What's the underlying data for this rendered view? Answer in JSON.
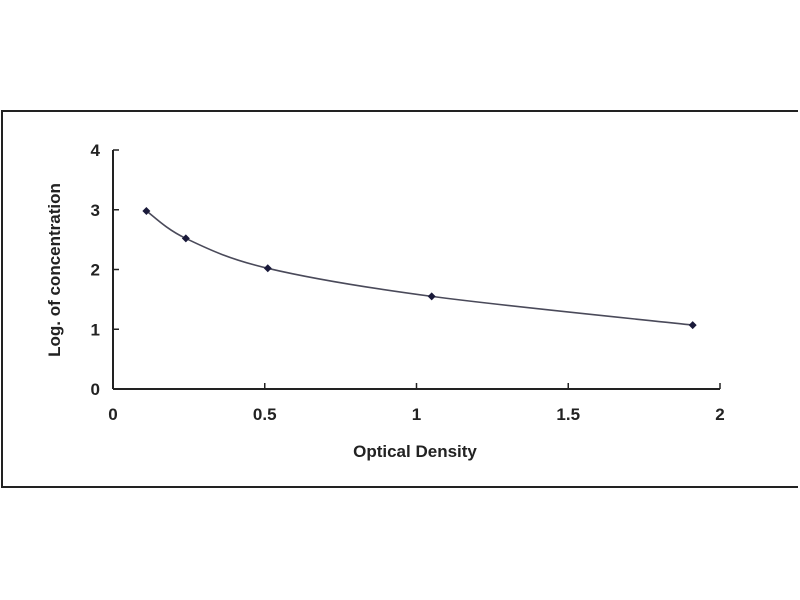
{
  "chart_data": {
    "type": "line",
    "title": "",
    "xlabel": "Optical Density",
    "ylabel": "Log. of concentration",
    "xlim": [
      0,
      2
    ],
    "ylim": [
      0,
      4
    ],
    "xticks": [
      "0",
      "0.5",
      "1",
      "1.5",
      "2"
    ],
    "yticks": [
      "0",
      "1",
      "2",
      "3",
      "4"
    ],
    "grid": false,
    "series": [
      {
        "x": [
          0.11,
          0.24,
          0.51,
          1.05,
          1.91
        ],
        "y": [
          2.98,
          2.52,
          2.02,
          1.55,
          1.07
        ],
        "smooth": true,
        "markers": "diamond"
      }
    ],
    "colors": {
      "line": "#4a4a5a",
      "marker": "#1a1a3a",
      "axis": "#222222"
    }
  }
}
